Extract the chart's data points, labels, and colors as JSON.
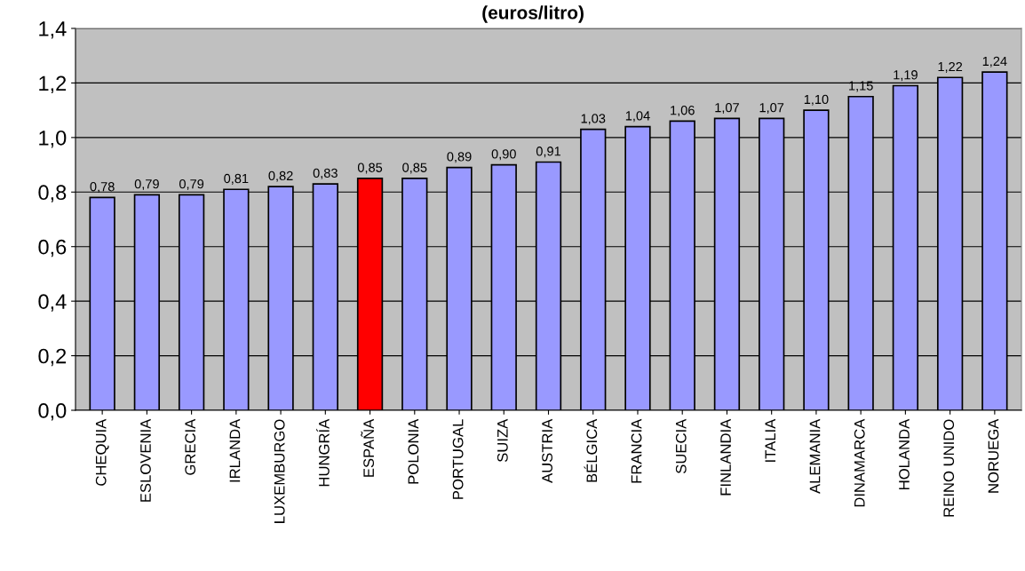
{
  "chart_data": {
    "type": "bar",
    "title": "(euros/litro)",
    "categories": [
      "CHEQUIA",
      "ESLOVENIA",
      "GRECIA",
      "IRLANDA",
      "LUXEMBURGO",
      "HUNGRÍA",
      "ESPAÑA",
      "POLONIA",
      "PORTUGAL",
      "SUIZA",
      "AUSTRIA",
      "BÉLGICA",
      "FRANCIA",
      "SUECIA",
      "FINLANDIA",
      "ITALIA",
      "ALEMANIA",
      "DINAMARCA",
      "HOLANDA",
      "REINO UNIDO",
      "NORUEGA"
    ],
    "values": [
      0.78,
      0.79,
      0.79,
      0.81,
      0.82,
      0.83,
      0.85,
      0.85,
      0.89,
      0.9,
      0.91,
      1.03,
      1.04,
      1.06,
      1.07,
      1.07,
      1.1,
      1.15,
      1.19,
      1.22,
      1.24
    ],
    "value_labels": [
      "0,78",
      "0,79",
      "0,79",
      "0,81",
      "0,82",
      "0,83",
      "0,85",
      "0,85",
      "0,89",
      "0,90",
      "0,91",
      "1,03",
      "1,04",
      "1,06",
      "1,07",
      "1,07",
      "1,10",
      "1,15",
      "1,19",
      "1,22",
      "1,24"
    ],
    "colors": [
      "#9999ff",
      "#9999ff",
      "#9999ff",
      "#9999ff",
      "#9999ff",
      "#9999ff",
      "#ff0000",
      "#9999ff",
      "#9999ff",
      "#9999ff",
      "#9999ff",
      "#9999ff",
      "#9999ff",
      "#9999ff",
      "#9999ff",
      "#9999ff",
      "#9999ff",
      "#9999ff",
      "#9999ff",
      "#9999ff",
      "#9999ff"
    ],
    "ylim": [
      0,
      1.4
    ],
    "yticks": [
      {
        "value": 0,
        "label": "0,0"
      },
      {
        "value": 0.2,
        "label": "0,2"
      },
      {
        "value": 0.4,
        "label": "0,4"
      },
      {
        "value": 0.6,
        "label": "0,6"
      },
      {
        "value": 0.8,
        "label": "0,8"
      },
      {
        "value": 1.0,
        "label": "1,0"
      },
      {
        "value": 1.2,
        "label": "1,2"
      },
      {
        "value": 1.4,
        "label": "1,4"
      }
    ],
    "grid": "y",
    "legend": false
  }
}
